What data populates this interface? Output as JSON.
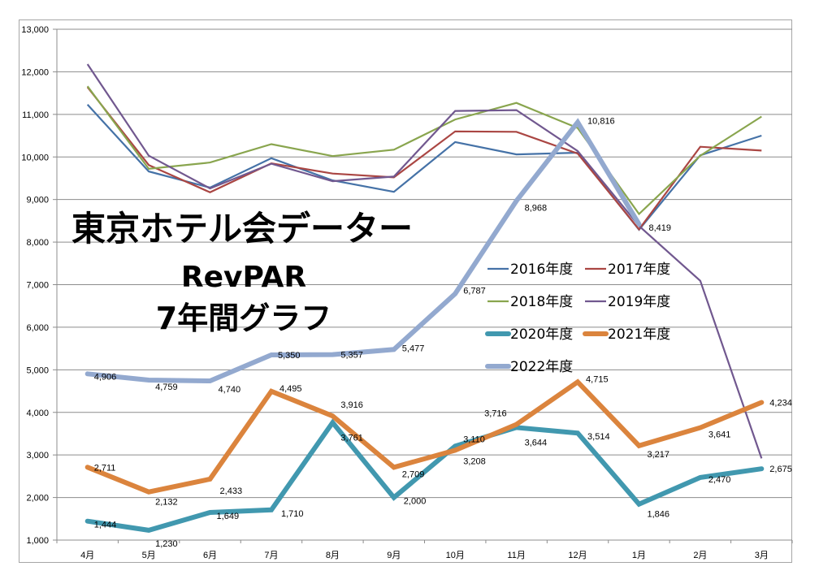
{
  "chart_data": {
    "type": "line",
    "title_lines": [
      "東京ホテル会データー",
      "RevPAR",
      "7年間グラフ"
    ],
    "xlabel": "",
    "ylabel": "",
    "categories": [
      "4月",
      "5月",
      "6月",
      "7月",
      "8月",
      "9月",
      "10月",
      "11月",
      "12月",
      "1月",
      "2月",
      "3月"
    ],
    "ylim": [
      1000,
      13000
    ],
    "yticks": [
      1000,
      2000,
      3000,
      4000,
      5000,
      6000,
      7000,
      8000,
      9000,
      10000,
      11000,
      12000,
      13000
    ],
    "ytick_labels": [
      "1,000",
      "2,000",
      "3,000",
      "4,000",
      "5,000",
      "6,000",
      "7,000",
      "8,000",
      "9,000",
      "10,000",
      "11,000",
      "12,000",
      "13,000"
    ],
    "grid": true,
    "legend_position": "center-right",
    "series": [
      {
        "name": "2016年度",
        "color": "#4572A7",
        "weight": "thin",
        "values": [
          11230,
          9660,
          9280,
          9970,
          9450,
          9180,
          10350,
          10060,
          10100,
          8290,
          10040,
          10500
        ],
        "labels": null
      },
      {
        "name": "2017年度",
        "color": "#AA4643",
        "weight": "thin",
        "values": [
          11640,
          9810,
          9170,
          9850,
          9610,
          9520,
          10600,
          10590,
          10080,
          8300,
          10240,
          10150
        ],
        "labels": null
      },
      {
        "name": "2018年度",
        "color": "#89A54E",
        "weight": "thin",
        "values": [
          11660,
          9720,
          9870,
          10300,
          10020,
          10170,
          10880,
          11270,
          10680,
          8660,
          10030,
          10950
        ],
        "labels": null
      },
      {
        "name": "2019年度",
        "color": "#71588F",
        "weight": "thin",
        "values": [
          12180,
          10030,
          9260,
          9840,
          9430,
          9540,
          11080,
          11100,
          10140,
          8380,
          7090,
          2920
        ],
        "labels": null
      },
      {
        "name": "2020年度",
        "color": "#4198AF",
        "weight": "thick",
        "values": [
          1444,
          1230,
          1649,
          1710,
          3761,
          2000,
          3208,
          3644,
          3514,
          1846,
          2470,
          2675
        ],
        "labels": [
          "1,444",
          "1,230",
          "1,649",
          "1,710",
          "3,761",
          "2,000",
          "3,208",
          "3,644",
          "3,514",
          "1,846",
          "2,470",
          "2,675"
        ]
      },
      {
        "name": "2021年度",
        "color": "#DB843D",
        "weight": "thick",
        "values": [
          2711,
          2132,
          2433,
          4495,
          3916,
          2709,
          3110,
          3716,
          4715,
          3217,
          3641,
          4234
        ],
        "labels": [
          "2,711",
          "2,132",
          "2,433",
          "4,495",
          "3,916",
          "2,709",
          "3,110",
          "3,716",
          "4,715",
          "3,217",
          "3,641",
          "4,234"
        ]
      },
      {
        "name": "2022年度",
        "color": "#93A9CF",
        "weight": "thick",
        "values": [
          4906,
          4759,
          4740,
          5350,
          5357,
          5477,
          6787,
          8968,
          10816,
          8419,
          null,
          null
        ],
        "labels": [
          "4,906",
          "4,759",
          "4,740",
          "5,350",
          "5,357",
          "5,477",
          "6,787",
          "8,968",
          "10,816",
          "8,419",
          null,
          null
        ]
      }
    ]
  }
}
